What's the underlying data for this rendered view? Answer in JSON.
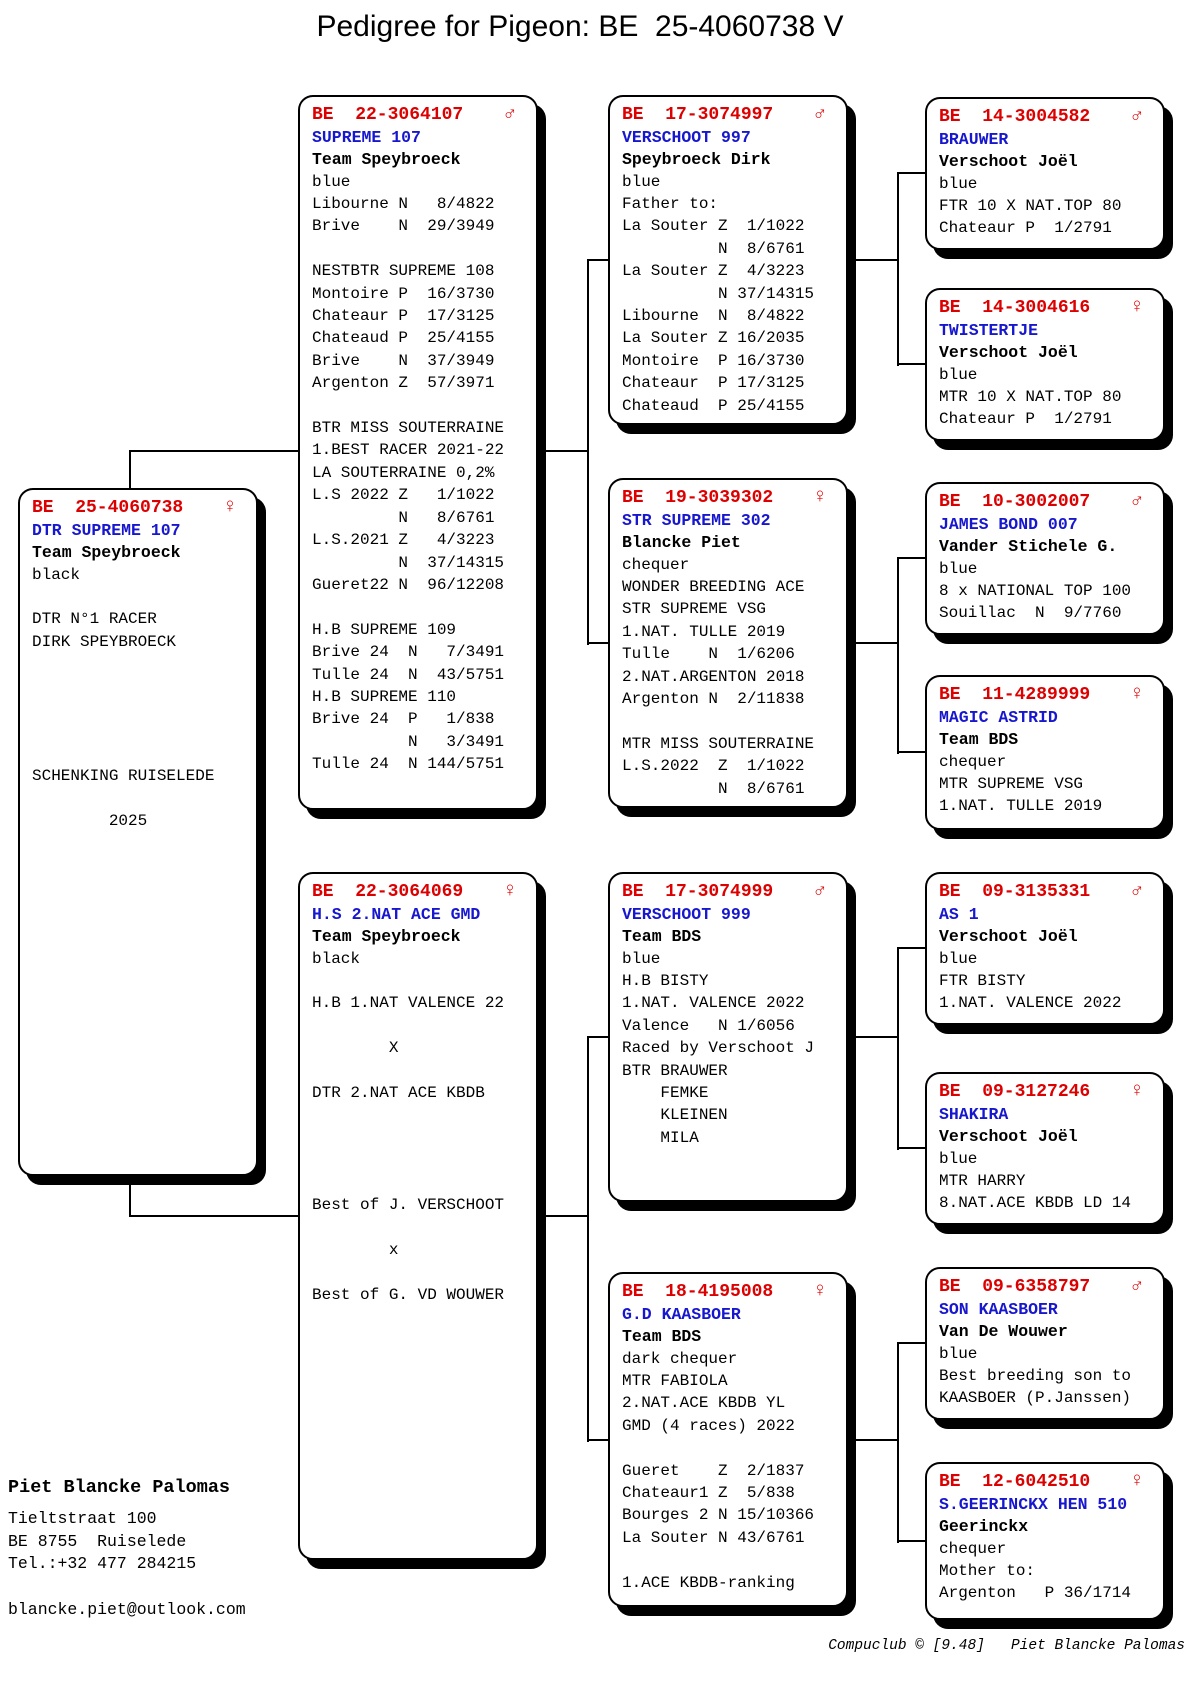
{
  "page": {
    "title": "Pedigree for Pigeon: BE  25-4060738 V",
    "accent_colors": {
      "ring_red": "#dd0000",
      "name_blue": "#1717ce",
      "line_black": "#000000"
    }
  },
  "owner": {
    "name": "Piet Blancke Palomas",
    "address_lines": [
      "Tieltstraat 100",
      "BE 8755  Ruiselede",
      "Tel.:+32 477 284215"
    ],
    "email": "blancke.piet@outlook.com"
  },
  "footer": {
    "credit": "Compuclub © [9.48]   Piet Blancke Palomas"
  },
  "pedigree": {
    "boxes": [
      {
        "id": "subject",
        "relation": "subject",
        "generation": 1,
        "ring": "BE  25-4060738",
        "sex": "female",
        "sex_symbol": "♀",
        "name": "DTR SUPREME 107",
        "fancier": "Team Speybroeck",
        "color": "black",
        "details": [
          "",
          "DTR N°1 RACER",
          "DIRK SPEYBROECK",
          "",
          "",
          "",
          "",
          "",
          "SCHENKING RUISELEDE",
          "",
          "        2025"
        ]
      },
      {
        "id": "father",
        "relation": "father",
        "generation": 2,
        "ring": "BE  22-3064107",
        "sex": "male",
        "sex_symbol": "♂",
        "name": "SUPREME 107",
        "fancier": "Team Speybroeck",
        "color": "blue",
        "details": [
          "Libourne N   8/4822",
          "Brive    N  29/3949",
          "",
          "NESTBTR SUPREME 108",
          "Montoire P  16/3730",
          "Chateaur P  17/3125",
          "Chateaud P  25/4155",
          "Brive    N  37/3949",
          "Argenton Z  57/3971",
          "",
          "BTR MISS SOUTERRAINE",
          "1.BEST RACER 2021-22",
          "LA SOUTERRAINE 0,2%",
          "L.S 2022 Z   1/1022",
          "         N   8/6761",
          "L.S.2021 Z   4/3223",
          "         N  37/14315",
          "Gueret22 N  96/12208",
          "",
          "H.B SUPREME 109",
          "Brive 24  N   7/3491",
          "Tulle 24  N  43/5751",
          "H.B SUPREME 110",
          "Brive 24  P   1/838",
          "          N   3/3491",
          "Tulle 24  N 144/5751"
        ]
      },
      {
        "id": "mother",
        "relation": "mother",
        "generation": 2,
        "ring": "BE  22-3064069",
        "sex": "female",
        "sex_symbol": "♀",
        "name": "H.S 2.NAT ACE GMD",
        "fancier": "Team Speybroeck",
        "color": "black",
        "details": [
          "",
          "H.B 1.NAT VALENCE 22",
          "",
          "        X",
          "",
          "DTR 2.NAT ACE KBDB",
          "",
          "",
          "",
          "",
          "Best of J. VERSCHOOT",
          "",
          "        x",
          "",
          "Best of G. VD WOUWER"
        ]
      },
      {
        "id": "gp1",
        "relation": "paternal-grandfather",
        "generation": 3,
        "ring": "BE  17-3074997",
        "sex": "male",
        "sex_symbol": "♂",
        "name": "VERSCHOOT 997",
        "fancier": "Speybroeck Dirk",
        "color": "blue",
        "details": [
          "Father to:",
          "La Souter Z  1/1022",
          "          N  8/6761",
          "La Souter Z  4/3223",
          "          N 37/14315",
          "Libourne  N  8/4822",
          "La Souter Z 16/2035",
          "Montoire  P 16/3730",
          "Chateaur  P 17/3125",
          "Chateaud  P 25/4155"
        ]
      },
      {
        "id": "gp2",
        "relation": "paternal-grandmother",
        "generation": 3,
        "ring": "BE  19-3039302",
        "sex": "female",
        "sex_symbol": "♀",
        "name": "STR SUPREME 302",
        "fancier": "Blancke Piet",
        "color": "chequer",
        "details": [
          "WONDER BREEDING ACE",
          "STR SUPREME VSG",
          "1.NAT. TULLE 2019",
          "Tulle    N  1/6206",
          "2.NAT.ARGENTON 2018",
          "Argenton N  2/11838",
          "",
          "MTR MISS SOUTERRAINE",
          "L.S.2022  Z  1/1022",
          "          N  8/6761"
        ]
      },
      {
        "id": "gp3",
        "relation": "maternal-grandfather",
        "generation": 3,
        "ring": "BE  17-3074999",
        "sex": "male",
        "sex_symbol": "♂",
        "name": "VERSCHOOT 999",
        "fancier": "Team BDS",
        "color": "blue",
        "details": [
          "H.B BISTY",
          "1.NAT. VALENCE 2022",
          "Valence   N 1/6056",
          "Raced by Verschoot J",
          "BTR BRAUWER",
          "    FEMKE",
          "    KLEINEN",
          "    MILA"
        ]
      },
      {
        "id": "gp4",
        "relation": "maternal-grandmother",
        "generation": 3,
        "ring": "BE  18-4195008",
        "sex": "female",
        "sex_symbol": "♀",
        "name": "G.D KAASBOER",
        "fancier": "Team BDS",
        "color": "dark chequer",
        "details": [
          "MTR FABIOLA",
          "2.NAT.ACE KBDB YL",
          "GMD (4 races) 2022",
          "",
          "Gueret    Z  2/1837",
          "Chateaur1 Z  5/838",
          "Bourges 2 N 15/10366",
          "La Souter N 43/6761",
          "",
          "1.ACE KBDB-ranking"
        ]
      },
      {
        "id": "ggp1",
        "relation": "great-grandfather",
        "generation": 4,
        "ring": "BE  14-3004582",
        "sex": "male",
        "sex_symbol": "♂",
        "name": "BRAUWER",
        "fancier": "Verschoot Joël",
        "color": "blue",
        "details": [
          "FTR 10 X NAT.TOP 80",
          "Chateaur P  1/2791"
        ]
      },
      {
        "id": "ggp2",
        "relation": "great-grandmother",
        "generation": 4,
        "ring": "BE  14-3004616",
        "sex": "female",
        "sex_symbol": "♀",
        "name": "TWISTERTJE",
        "fancier": "Verschoot Joël",
        "color": "blue",
        "details": [
          "MTR 10 X NAT.TOP 80",
          "Chateaur P  1/2791"
        ]
      },
      {
        "id": "ggp3",
        "relation": "great-grandfather",
        "generation": 4,
        "ring": "BE  10-3002007",
        "sex": "male",
        "sex_symbol": "♂",
        "name": "JAMES BOND 007",
        "fancier": "Vander Stichele G.",
        "color": "blue",
        "details": [
          "8 x NATIONAL TOP 100",
          "Souillac  N  9/7760"
        ]
      },
      {
        "id": "ggp4",
        "relation": "great-grandmother",
        "generation": 4,
        "ring": "BE  11-4289999",
        "sex": "female",
        "sex_symbol": "♀",
        "name": "MAGIC ASTRID",
        "fancier": "Team BDS",
        "color": "chequer",
        "details": [
          "MTR SUPREME VSG",
          "1.NAT. TULLE 2019"
        ]
      },
      {
        "id": "ggp5",
        "relation": "great-grandfather",
        "generation": 4,
        "ring": "BE  09-3135331",
        "sex": "male",
        "sex_symbol": "♂",
        "name": "AS 1",
        "fancier": "Verschoot Joël",
        "color": "blue",
        "details": [
          "FTR BISTY",
          "1.NAT. VALENCE 2022"
        ]
      },
      {
        "id": "ggp6",
        "relation": "great-grandmother",
        "generation": 4,
        "ring": "BE  09-3127246",
        "sex": "female",
        "sex_symbol": "♀",
        "name": "SHAKIRA",
        "fancier": "Verschoot Joël",
        "color": "blue",
        "details": [
          "MTR HARRY",
          "8.NAT.ACE KBDB LD 14"
        ]
      },
      {
        "id": "ggp7",
        "relation": "great-grandfather",
        "generation": 4,
        "ring": "BE  09-6358797",
        "sex": "male",
        "sex_symbol": "♂",
        "name": "SON KAASBOER",
        "fancier": "Van De Wouwer",
        "color": "blue",
        "details": [
          "Best breeding son to",
          "KAASBOER (P.Janssen)"
        ]
      },
      {
        "id": "ggp8",
        "relation": "great-grandmother",
        "generation": 4,
        "ring": "BE  12-6042510",
        "sex": "female",
        "sex_symbol": "♀",
        "name": "S.GEERINCKX HEN 510",
        "fancier": "Geerinckx",
        "color": "chequer",
        "details": [
          "Mother to:",
          "Argenton   P 36/1714"
        ]
      }
    ]
  }
}
